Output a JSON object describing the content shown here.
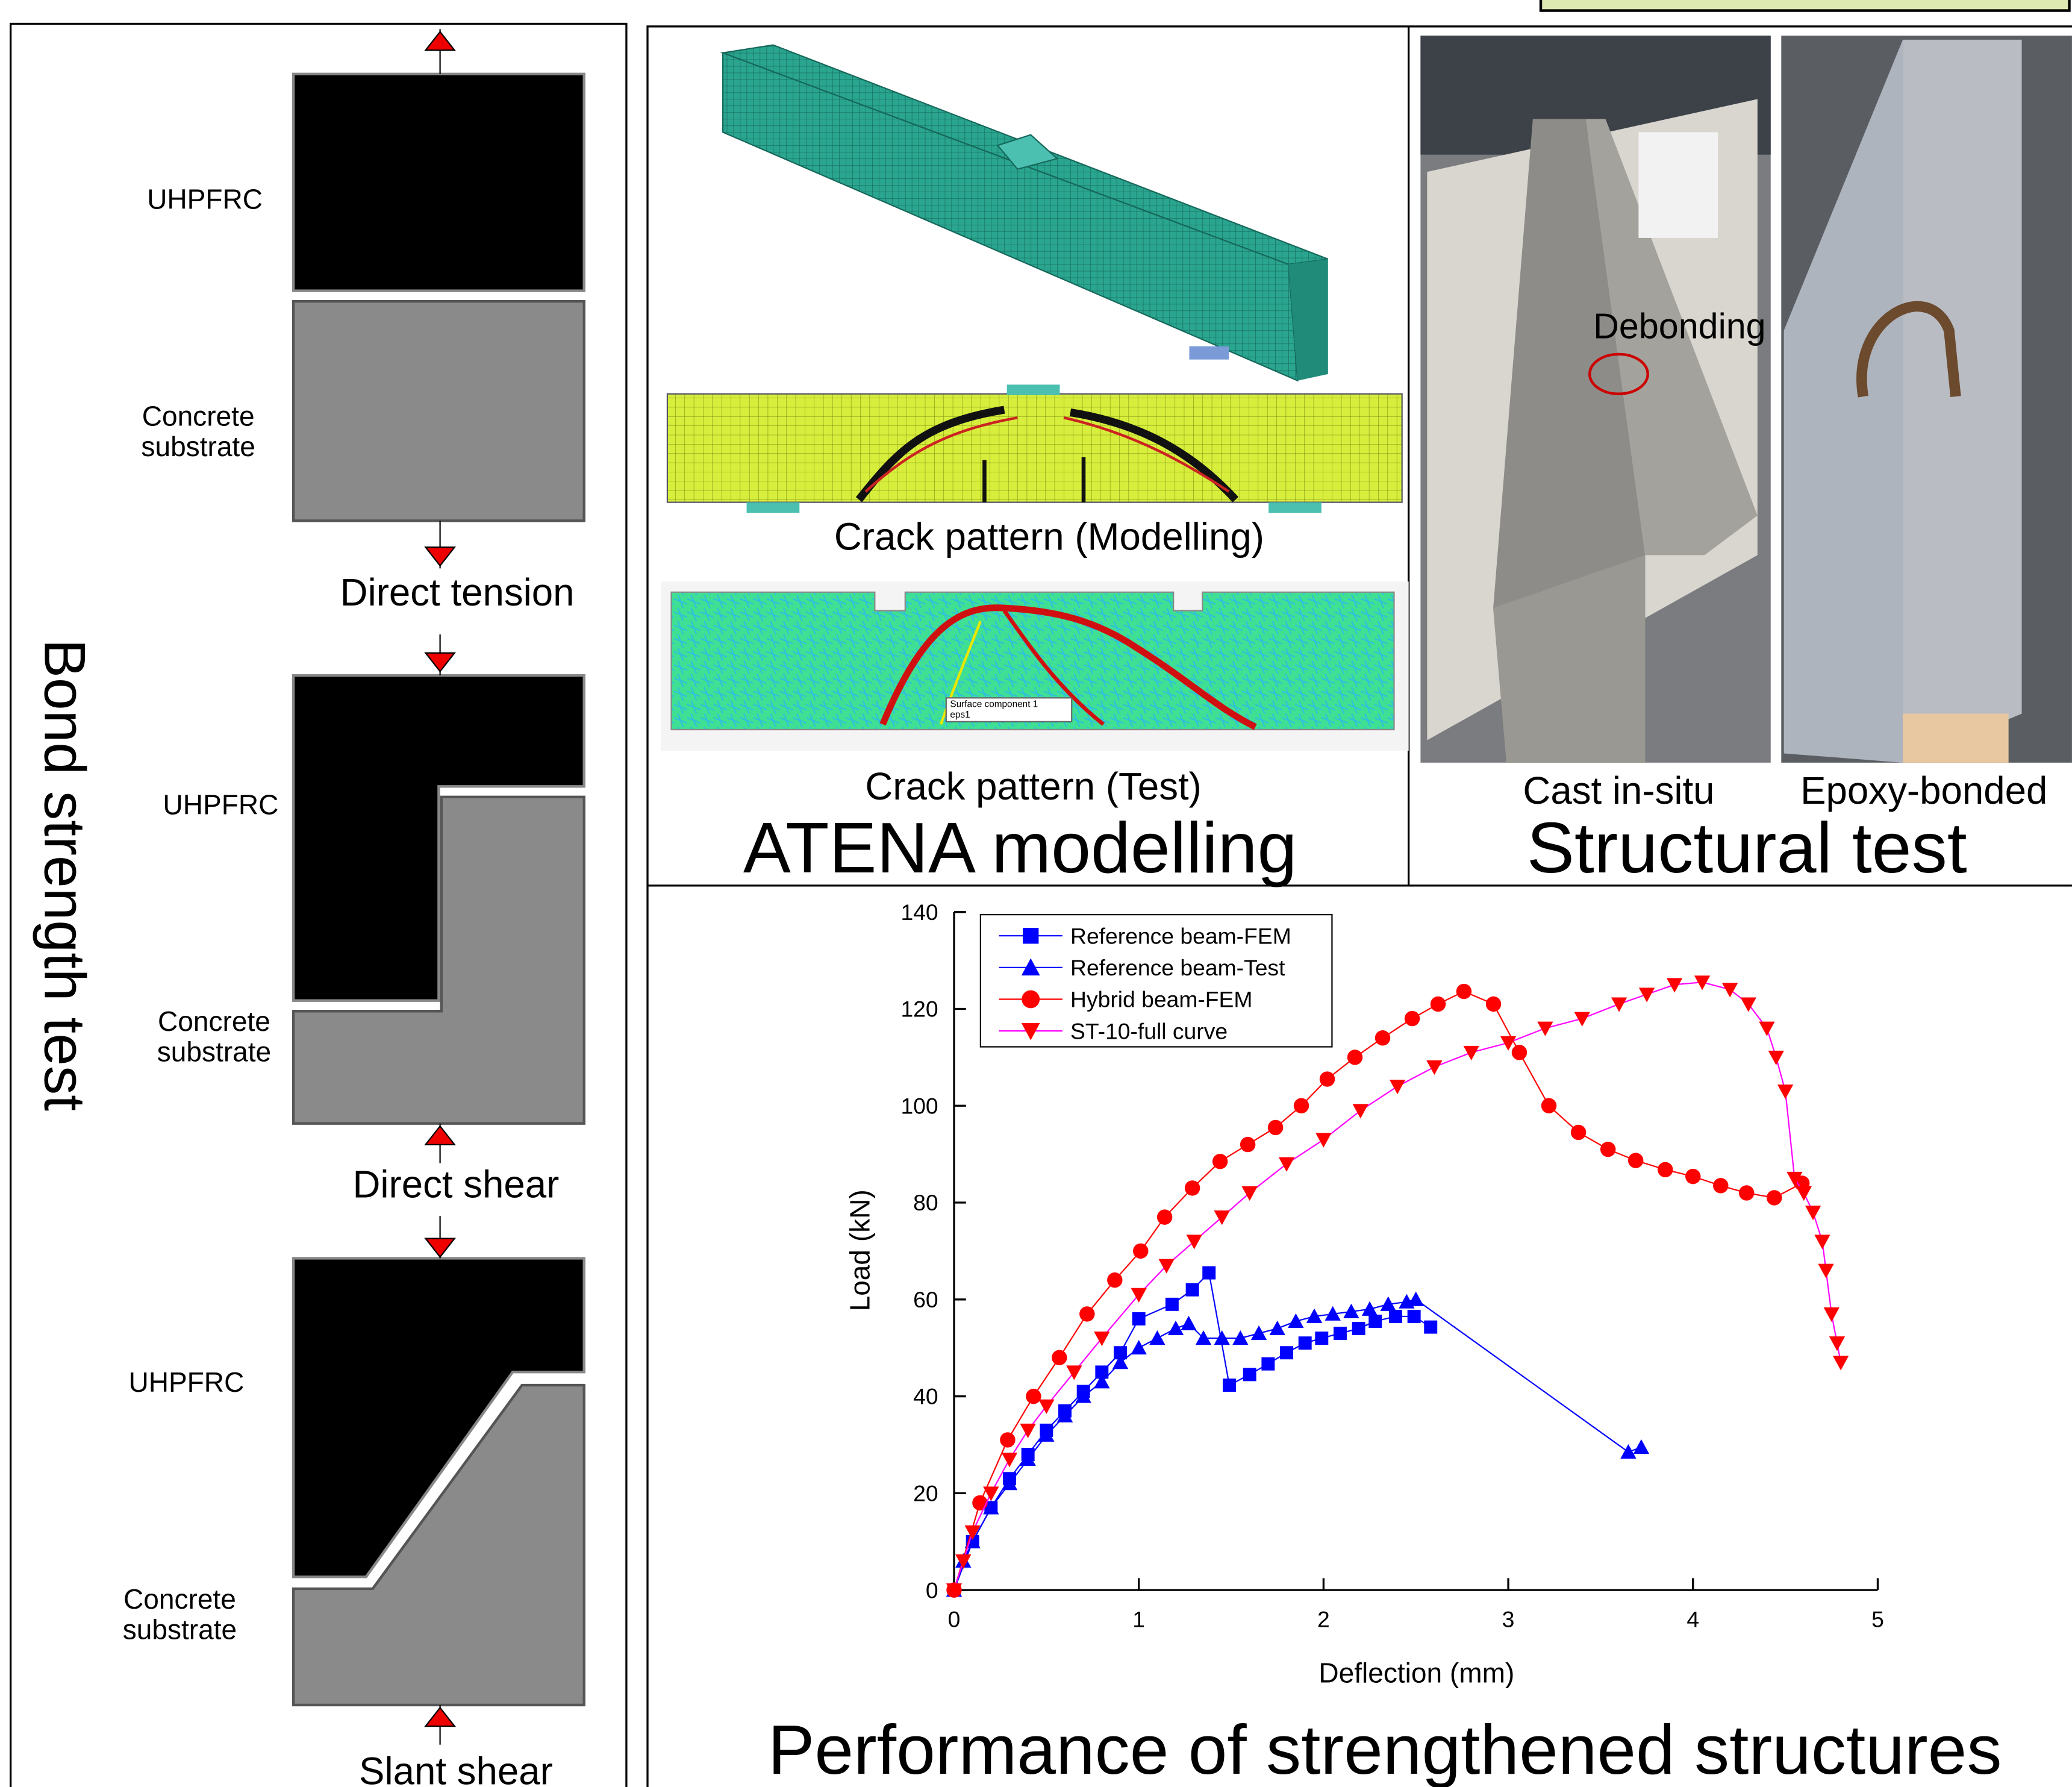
{
  "bond_panel": {
    "title": "Bond strength test",
    "tests": [
      {
        "top_label": "UHPFRC",
        "bottom_label": [
          "Concrete",
          "substrate"
        ],
        "name": "Direct tension"
      },
      {
        "top_label": "UHPFRC",
        "bottom_label": [
          "Concrete",
          "substrate"
        ],
        "name": "Direct shear"
      },
      {
        "top_label": "UHPFRC",
        "bottom_label": [
          "Concrete",
          "substrate"
        ],
        "name": "Slant shear"
      }
    ]
  },
  "atena_panel": {
    "title": "ATENA modelling",
    "modelling_caption": "Crack pattern (Modelling)",
    "test_caption": "Crack pattern (Test)",
    "test_tag": [
      "Surface component 1",
      "eps1"
    ]
  },
  "structural_panel": {
    "title": "Structural test",
    "annotation": "Debonding",
    "left_caption": "Cast in-situ",
    "right_caption": "Epoxy-bonded"
  },
  "chart_data": {
    "type": "line",
    "title": "Performance of strengthened structures",
    "x_label": "Deflection (mm)",
    "y_label": "Load (kN)",
    "xlim": [
      0,
      5
    ],
    "ylim": [
      0,
      140
    ],
    "xticks": [
      0,
      1,
      2,
      3,
      4,
      5
    ],
    "yticks": [
      0,
      20,
      40,
      60,
      80,
      100,
      120,
      140
    ],
    "legend": "upper left",
    "series": [
      {
        "name": "Reference beam-FEM",
        "color": "#0000ff",
        "marker": "square",
        "x": [
          0,
          0.1,
          0.2,
          0.3,
          0.4,
          0.5,
          0.6,
          0.7,
          0.8,
          0.9,
          1.0,
          1.18,
          1.29,
          1.38,
          1.49,
          1.6,
          1.7,
          1.8,
          1.9,
          1.99,
          2.09,
          2.19,
          2.28,
          2.39,
          2.49,
          2.58
        ],
        "values": [
          0,
          10,
          17,
          23,
          28,
          33,
          37,
          41,
          45,
          49,
          56,
          59,
          62,
          65.5,
          42.3,
          44.5,
          46.7,
          49,
          51,
          52,
          53,
          54,
          55.5,
          56.5,
          56.5,
          54.3
        ]
      },
      {
        "name": "Reference beam-Test",
        "color": "#0000ff",
        "marker": "triangle",
        "x": [
          0,
          0.05,
          0.1,
          0.2,
          0.3,
          0.4,
          0.5,
          0.6,
          0.7,
          0.8,
          0.9,
          1.0,
          1.1,
          1.2,
          1.27,
          1.35,
          1.45,
          1.55,
          1.65,
          1.75,
          1.85,
          1.95,
          2.05,
          2.15,
          2.25,
          2.35,
          2.45,
          2.5,
          3.65,
          3.72
        ],
        "values": [
          0,
          6,
          10,
          17,
          22,
          27,
          32,
          36,
          40,
          43,
          47,
          50,
          52,
          54,
          55,
          52,
          52,
          52,
          53,
          54,
          55.5,
          56.5,
          57,
          57.5,
          58,
          59,
          59.5,
          60,
          28.5,
          29.5
        ]
      },
      {
        "name": "Hybrid beam-FEM",
        "color": "#ff0000",
        "marker": "circle",
        "x": [
          0,
          0.14,
          0.29,
          0.43,
          0.57,
          0.72,
          0.87,
          1.01,
          1.14,
          1.29,
          1.44,
          1.59,
          1.74,
          1.88,
          2.02,
          2.17,
          2.32,
          2.48,
          2.62,
          2.76,
          2.92,
          3.06,
          3.22,
          3.38,
          3.54,
          3.69,
          3.85,
          4.0,
          4.15,
          4.29,
          4.44,
          4.59
        ],
        "values": [
          0,
          18,
          31,
          40,
          48,
          57,
          64,
          70,
          77,
          83,
          88.5,
          92,
          95.5,
          100,
          105.5,
          110,
          114,
          118,
          121,
          123.6,
          121,
          111,
          100,
          94.5,
          91,
          88.7,
          86.8,
          85.4,
          83.5,
          82,
          81,
          84
        ]
      },
      {
        "name": "ST-10-full curve",
        "color": "#ff0000",
        "line_color": "#ff00ff",
        "marker": "triangle-down",
        "x": [
          0,
          0.05,
          0.1,
          0.2,
          0.3,
          0.4,
          0.5,
          0.65,
          0.8,
          1.0,
          1.15,
          1.3,
          1.45,
          1.6,
          1.8,
          2.0,
          2.2,
          2.4,
          2.6,
          2.8,
          3.0,
          3.2,
          3.4,
          3.6,
          3.75,
          3.9,
          4.05,
          4.2,
          4.3,
          4.4,
          4.45,
          4.5,
          4.55,
          4.6,
          4.65,
          4.7,
          4.72,
          4.75,
          4.78,
          4.8
        ],
        "values": [
          0,
          6,
          12,
          20,
          27,
          33,
          38,
          45,
          52,
          61,
          67,
          72,
          77,
          82,
          88,
          93,
          99,
          104,
          108,
          111,
          113,
          116,
          118,
          121,
          123,
          125,
          125.5,
          124,
          121,
          116,
          110,
          103,
          85,
          82,
          78,
          72,
          66,
          57,
          51,
          47
        ]
      }
    ]
  }
}
